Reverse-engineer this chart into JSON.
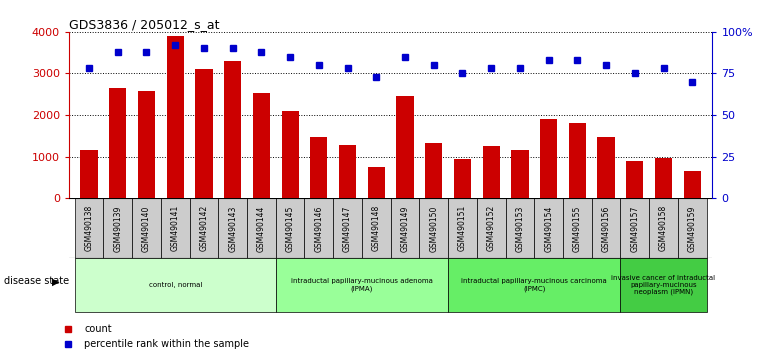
{
  "title": "GDS3836 / 205012_s_at",
  "samples": [
    "GSM490138",
    "GSM490139",
    "GSM490140",
    "GSM490141",
    "GSM490142",
    "GSM490143",
    "GSM490144",
    "GSM490145",
    "GSM490146",
    "GSM490147",
    "GSM490148",
    "GSM490149",
    "GSM490150",
    "GSM490151",
    "GSM490152",
    "GSM490153",
    "GSM490154",
    "GSM490155",
    "GSM490156",
    "GSM490157",
    "GSM490158",
    "GSM490159"
  ],
  "counts": [
    1150,
    2650,
    2580,
    3900,
    3100,
    3300,
    2520,
    2100,
    1470,
    1280,
    750,
    2450,
    1330,
    940,
    1250,
    1170,
    1900,
    1820,
    1470,
    900,
    970,
    650
  ],
  "percentiles": [
    78,
    88,
    88,
    92,
    90,
    90,
    88,
    85,
    80,
    78,
    73,
    85,
    80,
    75,
    78,
    78,
    83,
    83,
    80,
    75,
    78,
    70
  ],
  "bar_color": "#cc0000",
  "dot_color": "#0000cc",
  "ylim_left": [
    0,
    4000
  ],
  "ylim_right": [
    0,
    100
  ],
  "yticks_left": [
    0,
    1000,
    2000,
    3000,
    4000
  ],
  "yticks_right": [
    0,
    25,
    50,
    75,
    100
  ],
  "ytick_labels_right": [
    "0",
    "25",
    "50",
    "75",
    "100%"
  ],
  "groups": [
    {
      "label": "control, normal",
      "start": 0,
      "end": 7,
      "color": "#ccffcc"
    },
    {
      "label": "intraductal papillary-mucinous adenoma\n(IPMA)",
      "start": 7,
      "end": 13,
      "color": "#99ff99"
    },
    {
      "label": "intraductal papillary-mucinous carcinoma\n(IPMC)",
      "start": 13,
      "end": 19,
      "color": "#66ee66"
    },
    {
      "label": "invasive cancer of intraductal\npapillary-mucinous\nneoplasm (IPMN)",
      "start": 19,
      "end": 22,
      "color": "#44cc44"
    }
  ],
  "disease_state_label": "disease state",
  "background_color": "#ffffff",
  "ticklabel_box_color": "#cccccc"
}
